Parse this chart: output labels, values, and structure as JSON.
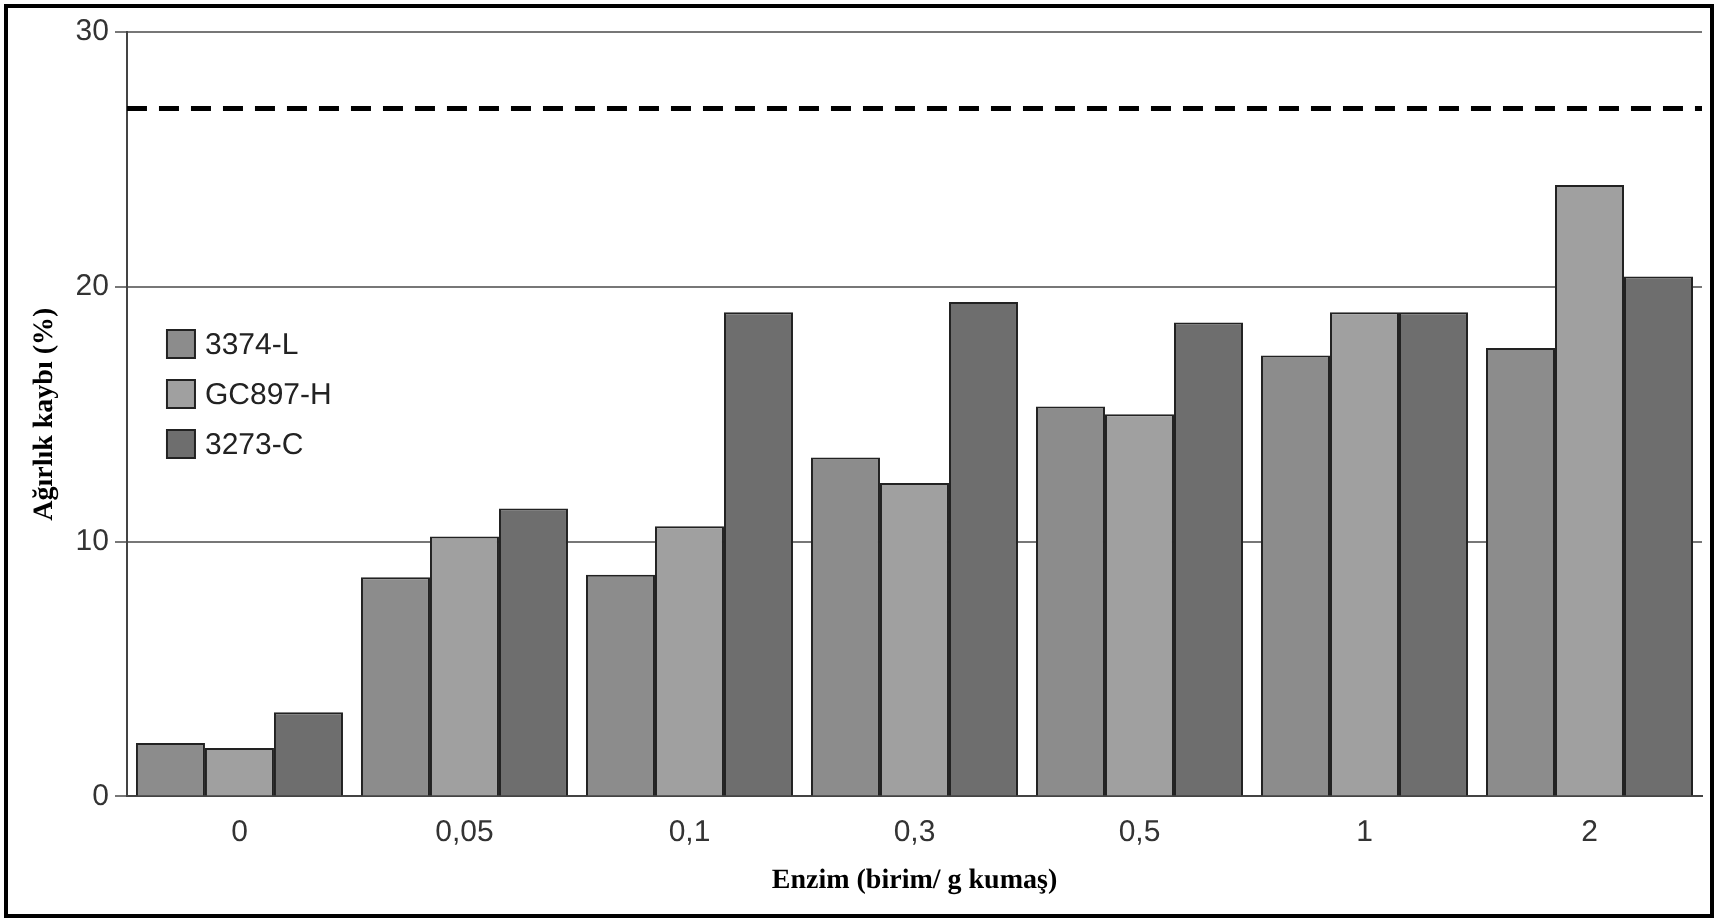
{
  "chart_data": {
    "type": "bar",
    "xlabel": "Enzim (birim/ g kumaş)",
    "ylabel": "Ağırlık kaybı (%)",
    "categories": [
      "0",
      "0,05",
      "0,1",
      "0,3",
      "0,5",
      "1",
      "2"
    ],
    "series": [
      {
        "name": "3374-L",
        "color": "#8c8c8c",
        "values": [
          2.1,
          8.6,
          8.7,
          13.3,
          15.3,
          17.3,
          17.6
        ]
      },
      {
        "name": "GC897-H",
        "color": "#a0a0a0",
        "values": [
          1.9,
          10.2,
          10.6,
          12.3,
          15.0,
          19.0,
          24.0
        ]
      },
      {
        "name": "3273-C",
        "color": "#6e6e6e",
        "values": [
          3.3,
          11.3,
          19.0,
          19.4,
          18.6,
          19.0,
          20.4
        ]
      }
    ],
    "ylim": [
      0,
      30
    ],
    "yticks": [
      0,
      10,
      20,
      30
    ],
    "grid": "y",
    "legend": "left",
    "ref_lines": [
      {
        "axis": "y",
        "value": 27,
        "color": "#000000",
        "line_style": "dashed"
      }
    ]
  }
}
